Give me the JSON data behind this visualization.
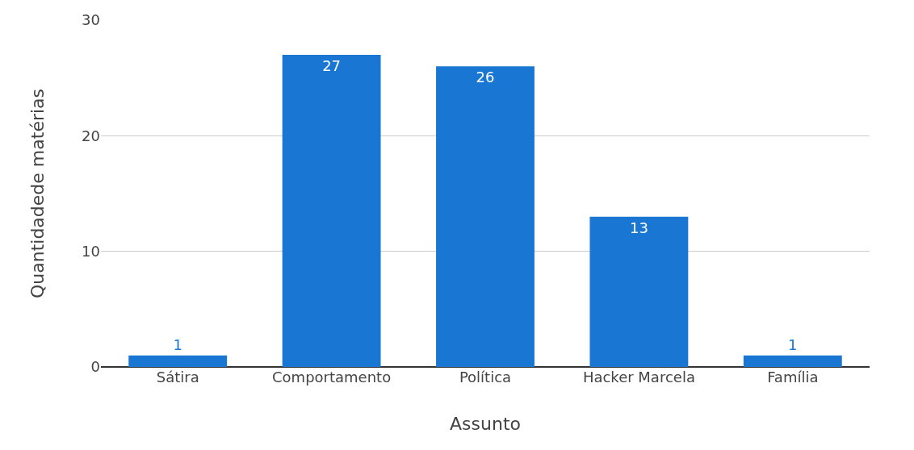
{
  "chart_data": {
    "type": "bar",
    "xlabel": "Assunto",
    "ylabel": "Quantidadede matérias",
    "categories": [
      "Sátira",
      "Comportamento",
      "Política",
      "Hacker Marcela",
      "Família"
    ],
    "values": [
      1,
      27,
      26,
      13,
      1
    ],
    "color": "#1976d2",
    "ylim": [
      0,
      30
    ],
    "yticks": [
      0,
      10,
      20,
      30
    ],
    "grid": "y",
    "data_labels": true
  }
}
